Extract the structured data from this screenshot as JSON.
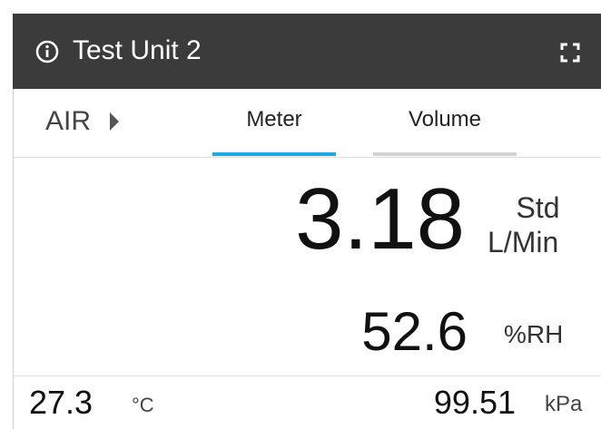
{
  "header": {
    "title": "Test Unit 2"
  },
  "mode": "AIR",
  "tabs": [
    "Meter",
    "Volume"
  ],
  "flow": {
    "value": 3.18,
    "unit_top": "Std",
    "unit_bottom": "L/Min"
  },
  "humidity": {
    "value": 52.6,
    "unit": "%RH"
  },
  "temperature": {
    "value": 27.3,
    "unit": "°C"
  },
  "pressure": {
    "value": 99.51,
    "unit": "kPa"
  }
}
